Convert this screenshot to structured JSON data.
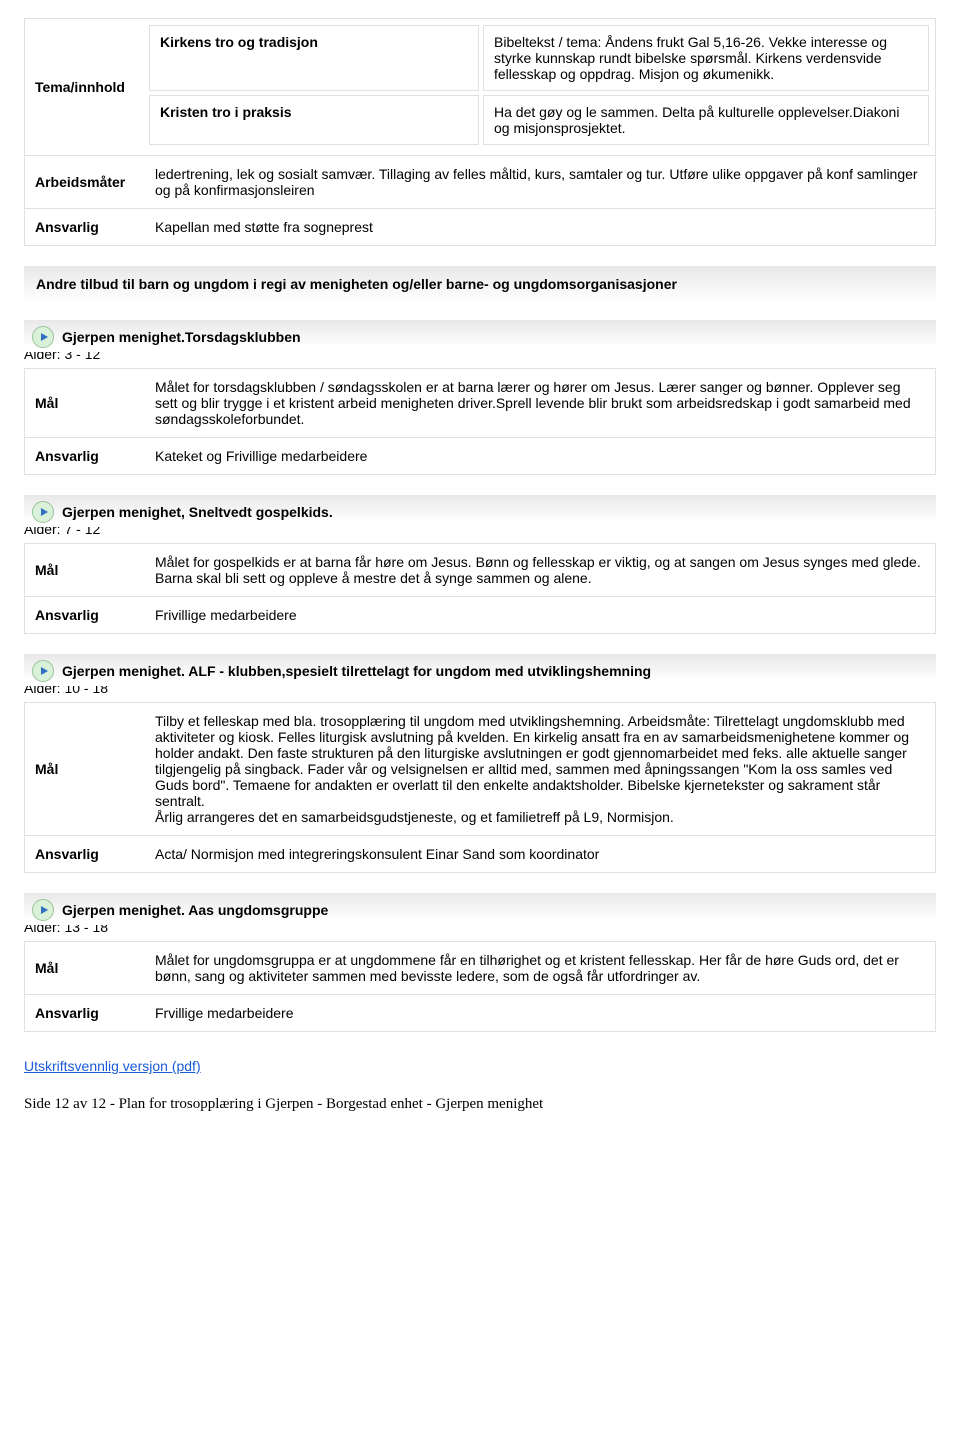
{
  "topBlock": {
    "labels": {
      "tema": "Tema/innhold",
      "arbeidsmater": "Arbeidsmåter",
      "ansvarlig": "Ansvarlig"
    },
    "pairs": [
      {
        "left": "Kirkens tro og tradisjon",
        "right": "Bibeltekst / tema: Åndens frukt Gal 5,16-26. Vekke interesse og styrke kunnskap rundt bibelske spørsmål. Kirkens verdensvide fellesskap og oppdrag. Misjon og økumenikk."
      },
      {
        "left": "Kristen tro i praksis",
        "right": "Ha det gøy og le sammen. Delta på kulturelle opplevelser.Diakoni og misjonsprosjektet."
      }
    ],
    "arbeidsmater": "ledertrening, lek og sosialt samvær. Tillaging av felles måltid, kurs, samtaler og tur. Utføre ulike oppgaver på konf samlinger og på konfirmasjonsleiren",
    "ansvarlig": "Kapellan med støtte fra sogneprest"
  },
  "sectionHeader": "Andre tilbud til barn og ungdom i regi av menigheten og/eller barne- og ungdomsorganisasjoner",
  "groups": [
    {
      "title": "Gjerpen menighet.Torsdagsklubben",
      "age": "Alder: 3 - 12",
      "malLabel": "Mål",
      "mal": "Målet for torsdagsklubben / søndagsskolen er at barna lærer og hører om Jesus. Lærer sanger og bønner. Opplever seg sett og blir trygge i et kristent arbeid menigheten driver.Sprell levende blir brukt som arbeidsredskap i godt samarbeid med søndagsskoleforbundet.",
      "ansLabel": "Ansvarlig",
      "ans": "Kateket og Frivillige medarbeidere"
    },
    {
      "title": "Gjerpen menighet, Sneltvedt gospelkids.",
      "age": "Alder: 7 - 12",
      "malLabel": "Mål",
      "mal": "Målet for gospelkids er at barna får høre om Jesus. Bønn og fellesskap er viktig, og at sangen om Jesus synges med glede. Barna skal bli sett og oppleve å mestre det å synge sammen og alene.",
      "ansLabel": "Ansvarlig",
      "ans": "Frivillige medarbeidere"
    },
    {
      "title": "Gjerpen menighet. ALF - klubben,spesielt tilrettelagt for ungdom med utviklingshemning",
      "age": "Alder: 10 - 18",
      "malLabel": "Mål",
      "mal": "Tilby et felleskap med bla. trosopplæring til ungdom med utviklingshemning. Arbeidsmåte: Tilrettelagt ungdomsklubb med aktiviteter og kiosk. Felles liturgisk avslutning på kvelden. En kirkelig ansatt fra en av samarbeidsmenighetene kommer og holder andakt. Den faste strukturen på den liturgiske avslutningen er godt gjennomarbeidet med feks. alle aktuelle sanger tilgjengelig på singback. Fader vår og velsignelsen er alltid med, sammen med åpningssangen \"Kom la oss samles ved Guds bord\". Temaene for andakten er overlatt til den enkelte andaktsholder. Bibelske kjernetekster og sakrament står sentralt.\nÅrlig arrangeres det en samarbeidsgudstjeneste, og et familietreff på L9, Normisjon.",
      "ansLabel": "Ansvarlig",
      "ans": "Acta/ Normisjon med integreringskonsulent Einar Sand som koordinator"
    },
    {
      "title": "Gjerpen menighet. Aas ungdomsgruppe",
      "age": "Alder: 13 - 18",
      "malLabel": "Mål",
      "mal": "Målet for ungdomsgruppa er at ungdommene får en tilhørighet og et kristent fellesskap. Her får de høre Guds ord, det er bønn, sang og aktiviteter sammen med bevisste ledere, som de også får utfordringer av.",
      "ansLabel": "Ansvarlig",
      "ans": "Frvillige medarbeidere"
    }
  ],
  "pdfLink": "Utskriftsvennlig versjon (pdf)",
  "footer": "Side 12 av 12 - Plan for trosopplæring i Gjerpen - Borgestad enhet - Gjerpen menighet"
}
